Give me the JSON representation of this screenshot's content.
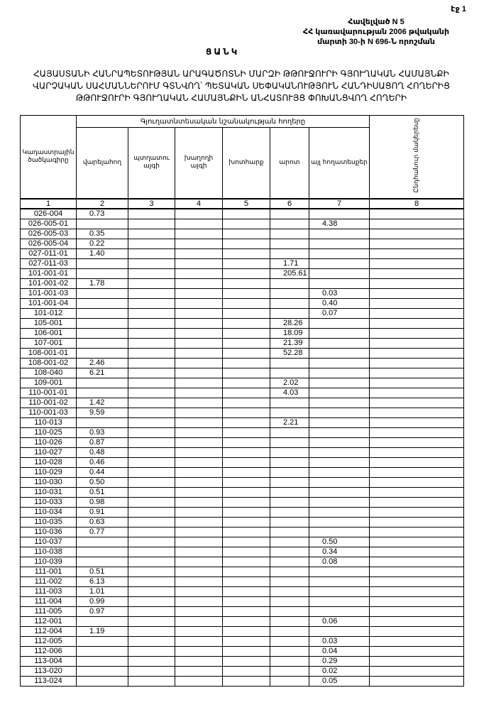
{
  "page_label": "էջ 1",
  "annex": {
    "line1": "Հավելված N 5",
    "line2": "ՀՀ կառավարության 2006 թվականի",
    "line3": "մարտի 30-ի N 696-Ն որոշման"
  },
  "list_title": "ՑԱՆԿ",
  "doc_title": {
    "line1": "ՀԱՅԱՍՏԱՆԻ ՀԱՆՐԱՊԵՏՈՒԹՅԱՆ ԱՐԱԳԱԾՈՏՆԻ ՄԱՐԶԻ ԹԹՈՒՋՈՒՐԻ ԳՅՈՒՂԱԿԱՆ ՀԱՄԱՅՆՔԻ",
    "line2": "ՎԱՐՉԱԿԱՆ ՍԱՀՄԱՆՆԵՐՈՒՄ ԳՏՆՎՈՂ՝ ՊԵՏԱԿԱՆ ՍԵՓԱԿԱՆՈՒԹՅՈՒՆ ՀԱՆԴԻՍԱՑՈՂ ՀՈՂԵՐԻՑ",
    "line3": "ԹԹՈՒՋՈՒՐԻ ԳՅՈՒՂԱԿԱՆ ՀԱՄԱՅՆՔԻՆ ԱՆՀԱՏՈՒՅՑ ՓՈԽԱՆՑՎՈՂ ՀՈՂԵՐԻ"
  },
  "table": {
    "col_code": "Կադաստրային ծածկագիրը",
    "group_header": "Գյուղատնտեսական նշանակության հողերը",
    "col_arable": "վարելահող",
    "col_orchard": "պտղատու այգի",
    "col_vineyard": "խաղողի այգի",
    "col_hayfield": "խոտհարք",
    "col_pasture": "արոտ",
    "col_other": "այլ հողատեսքեր",
    "col_total": "Ընդհանուր մակերեսը",
    "col_numbers": [
      "1",
      "2",
      "3",
      "4",
      "5",
      "6",
      "7",
      "8"
    ],
    "rows": [
      [
        "026-004",
        "0.73",
        "",
        "",
        "",
        "",
        "",
        ""
      ],
      [
        "026-005-01",
        "",
        "",
        "",
        "",
        "",
        "4.38",
        ""
      ],
      [
        "026-005-03",
        "0.35",
        "",
        "",
        "",
        "",
        "",
        ""
      ],
      [
        "026-005-04",
        "0.22",
        "",
        "",
        "",
        "",
        "",
        ""
      ],
      [
        "027-011-01",
        "1.40",
        "",
        "",
        "",
        "",
        "",
        ""
      ],
      [
        "027-011-03",
        "",
        "",
        "",
        "",
        "1.71",
        "",
        ""
      ],
      [
        "101-001-01",
        "",
        "",
        "",
        "",
        "205.61",
        "",
        ""
      ],
      [
        "101-001-02",
        "1.78",
        "",
        "",
        "",
        "",
        "",
        ""
      ],
      [
        "101-001-03",
        "",
        "",
        "",
        "",
        "",
        "0.03",
        ""
      ],
      [
        "101-001-04",
        "",
        "",
        "",
        "",
        "",
        "0.40",
        ""
      ],
      [
        "101-012",
        "",
        "",
        "",
        "",
        "",
        "0.07",
        ""
      ],
      [
        "105-001",
        "",
        "",
        "",
        "",
        "28.26",
        "",
        ""
      ],
      [
        "106-001",
        "",
        "",
        "",
        "",
        "18.09",
        "",
        ""
      ],
      [
        "107-001",
        "",
        "",
        "",
        "",
        "21.39",
        "",
        ""
      ],
      [
        "108-001-01",
        "",
        "",
        "",
        "",
        "52.28",
        "",
        ""
      ],
      [
        "108-001-02",
        "2.46",
        "",
        "",
        "",
        "",
        "",
        ""
      ],
      [
        "108-040",
        "6.21",
        "",
        "",
        "",
        "",
        "",
        ""
      ],
      [
        "109-001",
        "",
        "",
        "",
        "",
        "2.02",
        "",
        ""
      ],
      [
        "110-001-01",
        "",
        "",
        "",
        "",
        "4.03",
        "",
        ""
      ],
      [
        "110-001-02",
        "1.42",
        "",
        "",
        "",
        "",
        "",
        ""
      ],
      [
        "110-001-03",
        "9.59",
        "",
        "",
        "",
        "",
        "",
        ""
      ],
      [
        "110-013",
        "",
        "",
        "",
        "",
        "2.21",
        "",
        ""
      ],
      [
        "110-025",
        "0.93",
        "",
        "",
        "",
        "",
        "",
        ""
      ],
      [
        "110-026",
        "0.87",
        "",
        "",
        "",
        "",
        "",
        ""
      ],
      [
        "110-027",
        "0.48",
        "",
        "",
        "",
        "",
        "",
        ""
      ],
      [
        "110-028",
        "0.46",
        "",
        "",
        "",
        "",
        "",
        ""
      ],
      [
        "110-029",
        "0.44",
        "",
        "",
        "",
        "",
        "",
        ""
      ],
      [
        "110-030",
        "0.50",
        "",
        "",
        "",
        "",
        "",
        ""
      ],
      [
        "110-031",
        "0.51",
        "",
        "",
        "",
        "",
        "",
        ""
      ],
      [
        "110-033",
        "0.98",
        "",
        "",
        "",
        "",
        "",
        ""
      ],
      [
        "110-034",
        "0.91",
        "",
        "",
        "",
        "",
        "",
        ""
      ],
      [
        "110-035",
        "0.63",
        "",
        "",
        "",
        "",
        "",
        ""
      ],
      [
        "110-036",
        "0.77",
        "",
        "",
        "",
        "",
        "",
        ""
      ],
      [
        "110-037",
        "",
        "",
        "",
        "",
        "",
        "0.50",
        ""
      ],
      [
        "110-038",
        "",
        "",
        "",
        "",
        "",
        "0.34",
        ""
      ],
      [
        "110-039",
        "",
        "",
        "",
        "",
        "",
        "0.08",
        ""
      ],
      [
        "111-001",
        "0.51",
        "",
        "",
        "",
        "",
        "",
        ""
      ],
      [
        "111-002",
        "6.13",
        "",
        "",
        "",
        "",
        "",
        ""
      ],
      [
        "111-003",
        "1.01",
        "",
        "",
        "",
        "",
        "",
        ""
      ],
      [
        "111-004",
        "0.99",
        "",
        "",
        "",
        "",
        "",
        ""
      ],
      [
        "111-005",
        "0.97",
        "",
        "",
        "",
        "",
        "",
        ""
      ],
      [
        "112-001",
        "",
        "",
        "",
        "",
        "",
        "0.06",
        ""
      ],
      [
        "112-004",
        "1.19",
        "",
        "",
        "",
        "",
        "",
        ""
      ],
      [
        "112-005",
        "",
        "",
        "",
        "",
        "",
        "0.03",
        ""
      ],
      [
        "112-006",
        "",
        "",
        "",
        "",
        "",
        "0.04",
        ""
      ],
      [
        "113-004",
        "",
        "",
        "",
        "",
        "",
        "0.29",
        ""
      ],
      [
        "113-020",
        "",
        "",
        "",
        "",
        "",
        "0.02",
        ""
      ],
      [
        "113-024",
        "",
        "",
        "",
        "",
        "",
        "0.05",
        ""
      ]
    ]
  }
}
